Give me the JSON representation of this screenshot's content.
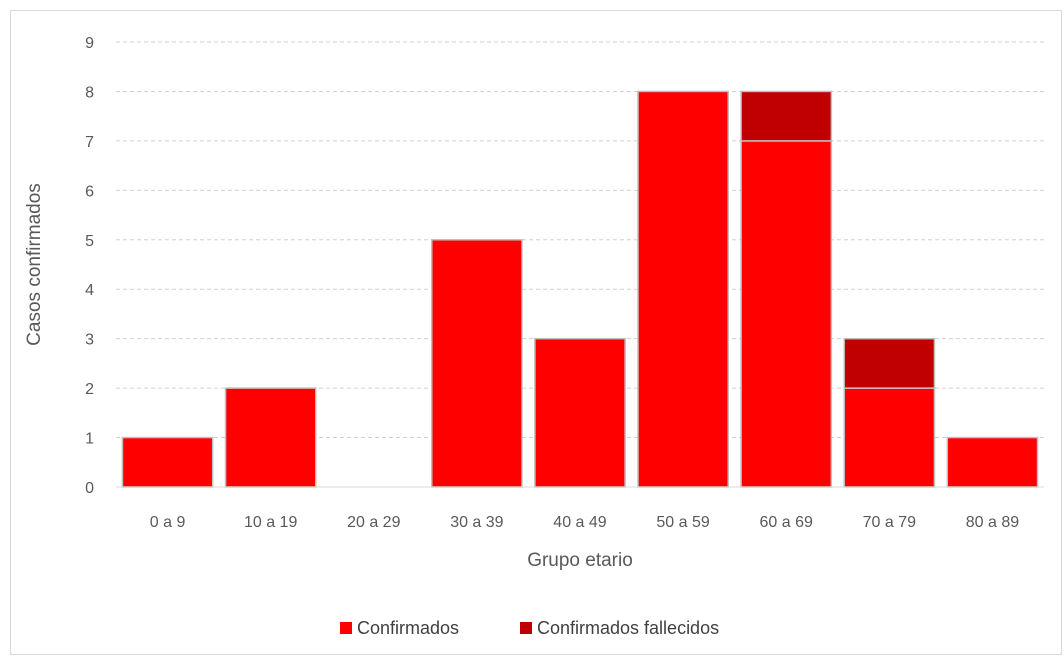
{
  "chart_data": {
    "type": "bar",
    "stacked": true,
    "categories": [
      "0 a 9",
      "10 a 19",
      "20 a 29",
      "30 a 39",
      "40 a 49",
      "50 a 59",
      "60 a 69",
      "70 a 79",
      "80 a 89"
    ],
    "series": [
      {
        "name": "Confirmados",
        "color": "#ff0000",
        "values": [
          1,
          2,
          0,
          5,
          3,
          8,
          7,
          2,
          1
        ]
      },
      {
        "name": "Confirmados fallecidos",
        "color": "#c00000",
        "values": [
          0,
          0,
          0,
          0,
          0,
          0,
          1,
          1,
          0
        ]
      }
    ],
    "title": "",
    "xlabel": "Grupo etario",
    "ylabel": "Casos confirmados",
    "ylim": [
      0,
      9
    ],
    "yticks": [
      0,
      1,
      2,
      3,
      4,
      5,
      6,
      7,
      8,
      9
    ],
    "grid": true,
    "gridStyle": "dashed",
    "legend_position": "bottom"
  }
}
